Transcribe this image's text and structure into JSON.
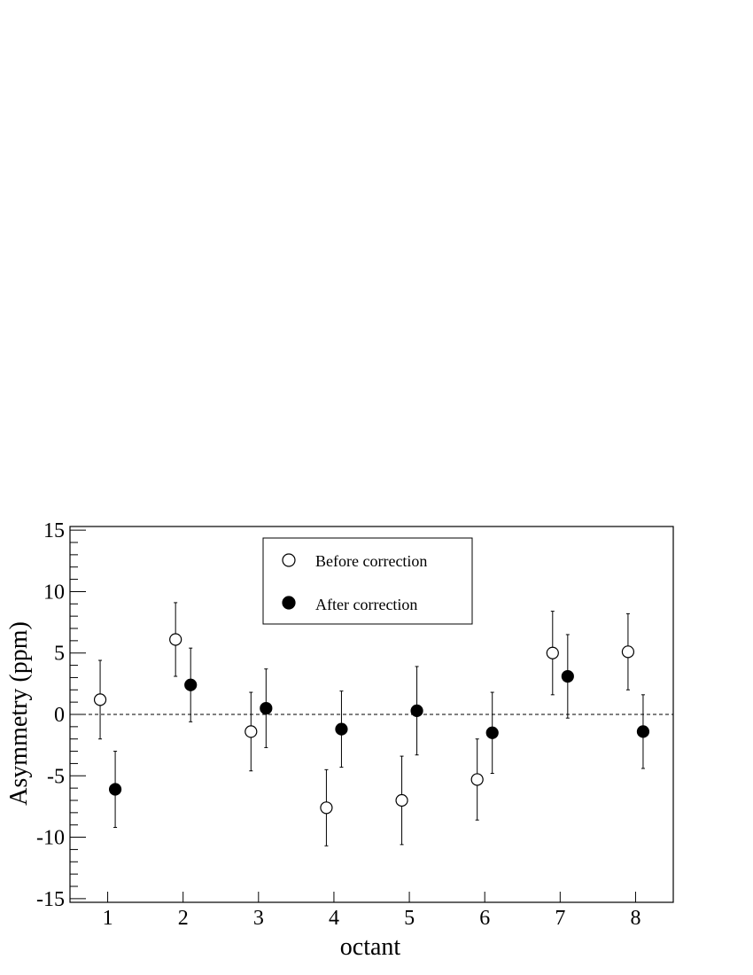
{
  "chart_data": {
    "type": "scatter",
    "xlabel": "octant",
    "ylabel": "Asymmetry (ppm)",
    "xlim": [
      0.5,
      8.5
    ],
    "ylim": [
      -15.3,
      15.3
    ],
    "x_ticks": [
      1,
      2,
      3,
      4,
      5,
      6,
      7,
      8
    ],
    "y_ticks": [
      -15,
      -10,
      -5,
      0,
      5,
      10,
      15
    ],
    "x_tick_labels": [
      "1",
      "2",
      "3",
      "4",
      "5",
      "6",
      "7",
      "8"
    ],
    "y_tick_labels": [
      "-15",
      "-10",
      "-5",
      "0",
      "5",
      "10",
      "15"
    ],
    "reference_line": {
      "y": 0,
      "style": "dashed"
    },
    "grid": false,
    "legend_placement": "top-center",
    "series": [
      {
        "name": "Before correction",
        "marker": "open-circle",
        "x_offset": -0.1,
        "x": [
          1,
          2,
          3,
          4,
          5,
          6,
          7,
          8
        ],
        "y": [
          1.2,
          6.1,
          -1.4,
          -7.6,
          -7.0,
          -5.3,
          5.0,
          5.1
        ],
        "err": [
          3.2,
          3.0,
          3.2,
          3.1,
          3.6,
          3.3,
          3.4,
          3.1
        ]
      },
      {
        "name": "After correction",
        "marker": "filled-circle",
        "x_offset": 0.1,
        "x": [
          1,
          2,
          3,
          4,
          5,
          6,
          7,
          8
        ],
        "y": [
          -6.1,
          2.4,
          0.5,
          -1.2,
          0.3,
          -1.5,
          3.1,
          -1.4
        ],
        "err": [
          3.1,
          3.0,
          3.2,
          3.1,
          3.6,
          3.3,
          3.4,
          3.0
        ]
      }
    ]
  }
}
